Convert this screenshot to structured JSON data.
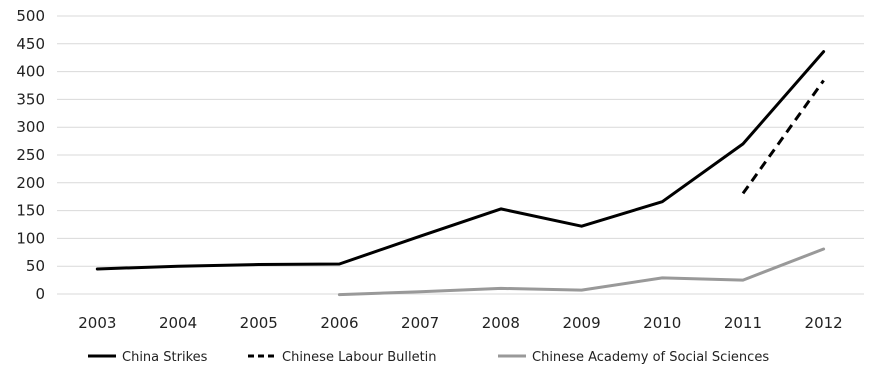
{
  "chart_data": {
    "type": "line",
    "title": "",
    "xlabel": "",
    "ylabel": "",
    "categories": [
      "2003",
      "2004",
      "2005",
      "2006",
      "2007",
      "2008",
      "2009",
      "2010",
      "2011",
      "2012"
    ],
    "ylim": [
      0,
      500
    ],
    "yticks": [
      "0",
      "50",
      "100",
      "150",
      "200",
      "250",
      "300",
      "350",
      "400",
      "450",
      "500"
    ],
    "grid": true,
    "legend_position": "bottom",
    "series": [
      {
        "name": "China Strikes",
        "color": "#000000",
        "dash": "solid",
        "values": [
          45,
          50,
          53,
          54,
          104,
          153,
          122,
          166,
          270,
          436
        ]
      },
      {
        "name": "Chinese Labour Bulletin",
        "color": "#000000",
        "dash": "dashed",
        "values": [
          null,
          null,
          null,
          null,
          null,
          null,
          null,
          null,
          181,
          384
        ]
      },
      {
        "name": "Chinese Academy of Social Sciences",
        "color": "#999999",
        "dash": "solid",
        "values": [
          null,
          null,
          null,
          -1,
          4,
          10,
          7,
          29,
          25,
          81
        ]
      }
    ]
  }
}
